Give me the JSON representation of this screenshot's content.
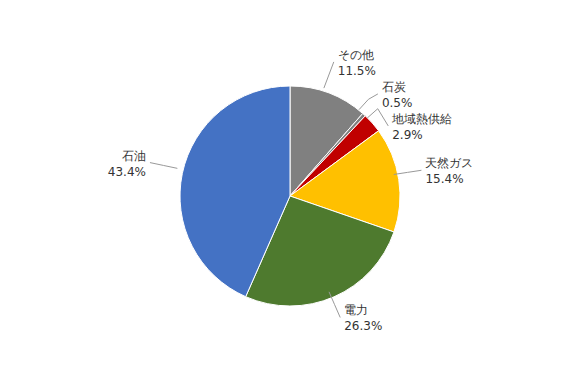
{
  "chart_data": {
    "type": "pie",
    "categories": [
      "その他",
      "石炭",
      "地域熱供給",
      "天然ガス",
      "電力",
      "石油"
    ],
    "values": [
      11.5,
      0.5,
      2.9,
      15.4,
      26.3,
      43.4
    ],
    "value_labels": [
      "11.5%",
      "0.5%",
      "2.9%",
      "15.4%",
      "26.3%",
      "43.4%"
    ],
    "colors": [
      "#808080",
      "#7F7F7F",
      "#C00000",
      "#FFC000",
      "#4E7A2E",
      "#4472C4"
    ],
    "data_labels": true
  }
}
